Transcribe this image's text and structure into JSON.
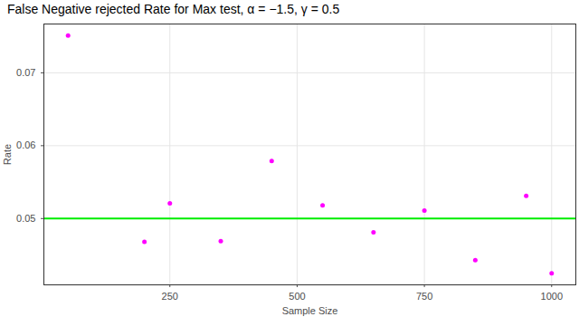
{
  "chart_data": {
    "type": "scatter",
    "title": "False Negative rejected Rate for Max test, α = −1.5, γ = 0.5",
    "x_label": "Sample Size",
    "y_label": "Rate",
    "x": [
      50,
      200,
      250,
      350,
      450,
      550,
      650,
      750,
      850,
      950,
      1000
    ],
    "values": [
      0.0751,
      0.0468,
      0.0521,
      0.0469,
      0.0579,
      0.0518,
      0.0481,
      0.0511,
      0.0443,
      0.0531,
      0.0425
    ],
    "color": "#ff00ff",
    "marker": "circle",
    "xlim": [
      2.5,
      1047.5
    ],
    "xticks": [
      250,
      500,
      750,
      1000
    ],
    "ylim": [
      0.0409,
      0.0767
    ],
    "yticks": [
      0.05,
      0.06,
      0.07
    ],
    "grid": true,
    "hline": {
      "value": 0.05,
      "color": "#00ee00"
    }
  }
}
